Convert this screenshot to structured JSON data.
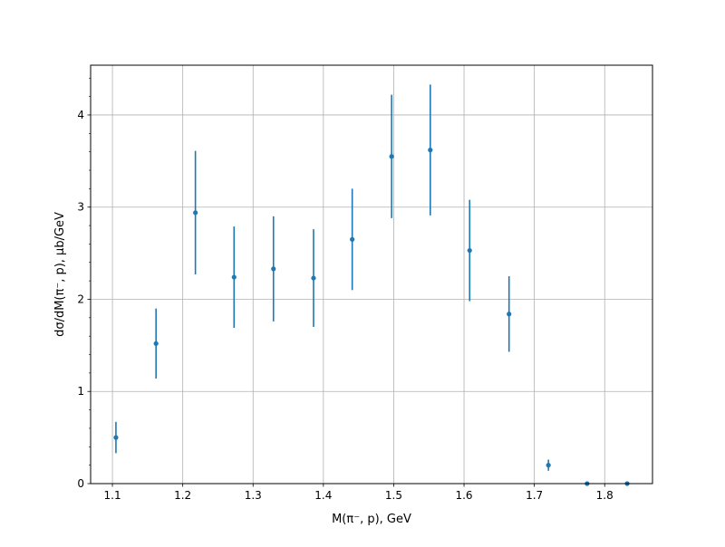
{
  "chart_data": {
    "type": "scatter",
    "title": "",
    "xlabel": "M(π⁻, p), GeV",
    "ylabel": "dσ/dM(π⁻, p), μb/GeV",
    "xlim": [
      1.069,
      1.868
    ],
    "ylim": [
      0,
      4.54
    ],
    "grid": true,
    "color": "#1f77b4",
    "xticks": [
      1.1,
      1.2,
      1.3,
      1.4,
      1.5,
      1.6,
      1.7,
      1.8
    ],
    "xtick_labels": [
      "1.1",
      "1.2",
      "1.3",
      "1.4",
      "1.5",
      "1.6",
      "1.7",
      "1.8"
    ],
    "yticks": [
      0,
      1,
      2,
      3,
      4
    ],
    "ytick_labels": [
      "0",
      "1",
      "2",
      "3",
      "4"
    ],
    "yminor_step": 0.2,
    "x": [
      1.105,
      1.162,
      1.218,
      1.273,
      1.329,
      1.386,
      1.441,
      1.497,
      1.552,
      1.608,
      1.664,
      1.72,
      1.775,
      1.832
    ],
    "y": [
      0.5,
      1.52,
      2.94,
      2.24,
      2.33,
      2.23,
      2.65,
      3.55,
      3.62,
      2.53,
      1.84,
      0.2,
      0.0,
      0.0
    ],
    "yerr": [
      0.17,
      0.38,
      0.67,
      0.55,
      0.57,
      0.53,
      0.55,
      0.67,
      0.71,
      0.55,
      0.41,
      0.06,
      0.0,
      0.0
    ]
  }
}
